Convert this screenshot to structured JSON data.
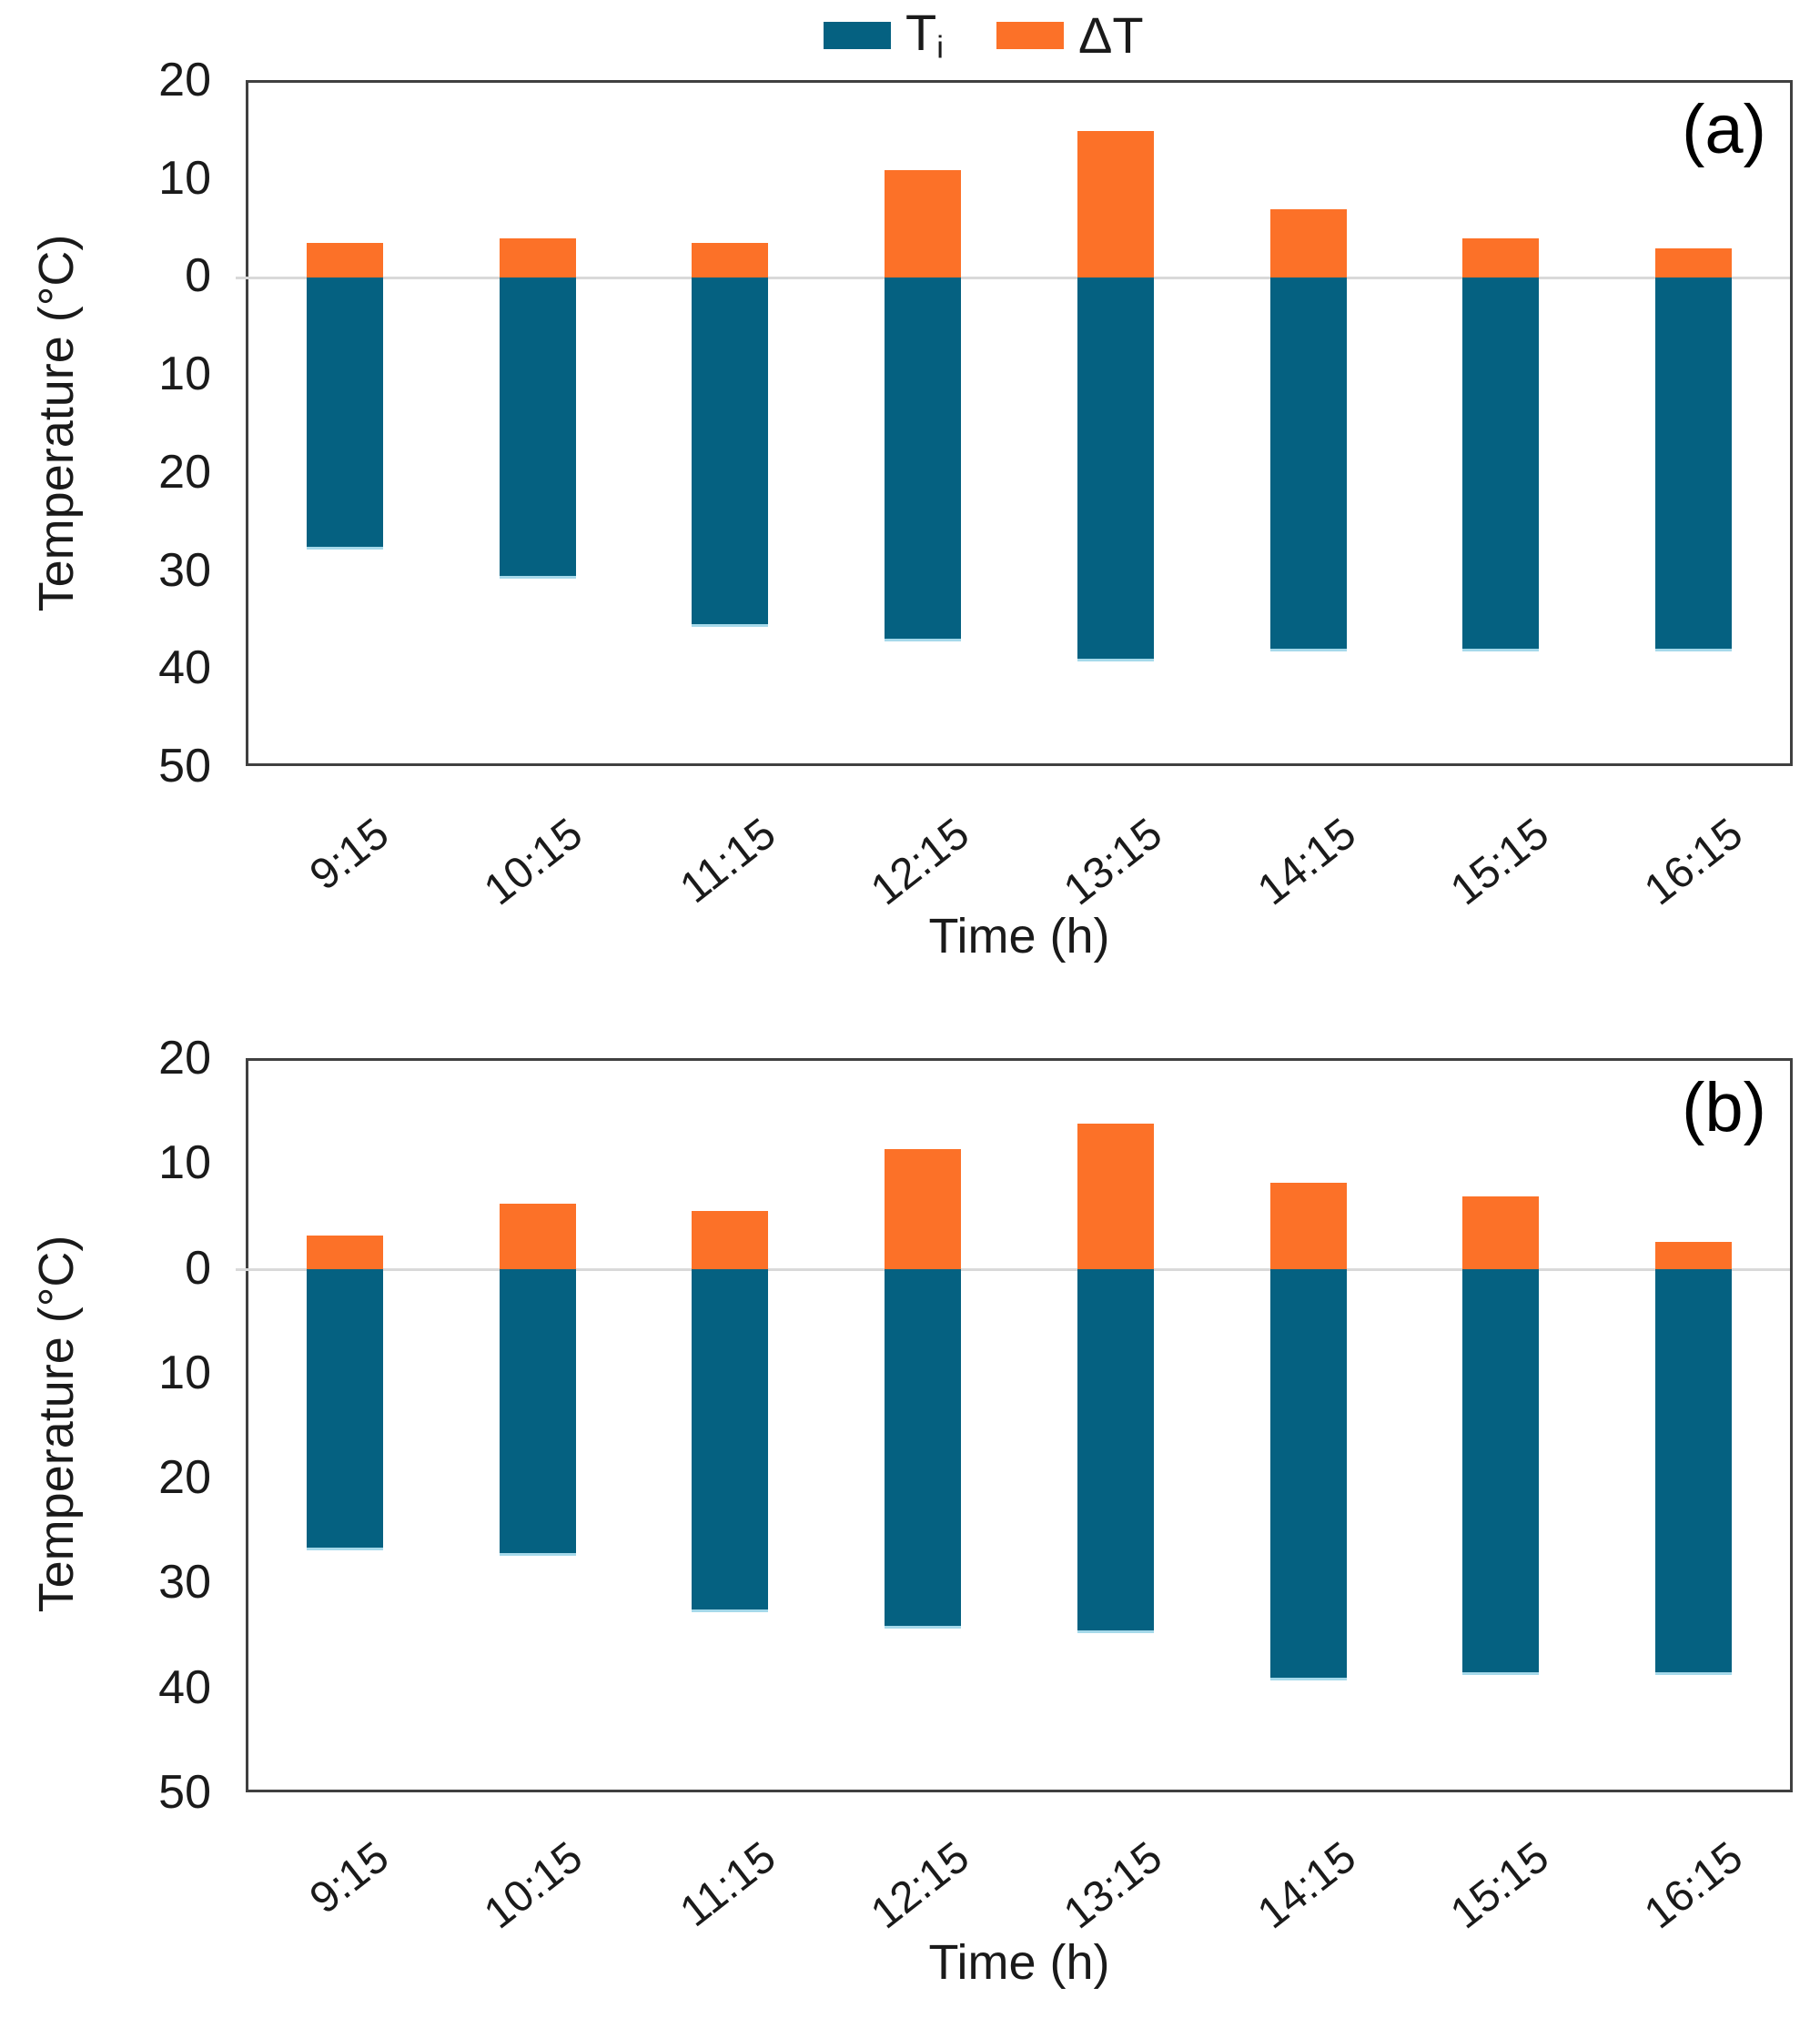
{
  "legend": {
    "items": [
      {
        "label": "T",
        "sub": "i",
        "color": "#056181"
      },
      {
        "label": "ΔT",
        "sub": "",
        "color": "#FC7128"
      }
    ]
  },
  "colors": {
    "ti_bar": "#056181",
    "dt_bar": "#FC7128",
    "frame": "#404040",
    "zero_gridline": "#d9d9d9",
    "ti_bar_bottom_edge": "#a6d9ea"
  },
  "chart_data": [
    {
      "type": "bar",
      "panel_label": "(a)",
      "xlabel": "Time (h)",
      "ylabel": "Temperature (°C)",
      "categories": [
        "9:15",
        "10:15",
        "11:15",
        "12:15",
        "13:15",
        "14:15",
        "15:15",
        "16:15"
      ],
      "axis": {
        "ymax": 20,
        "ymin": -50,
        "note": "negative side labeled with absolute values; Ti plotted downward from 0, ΔT upward"
      },
      "yticks": [
        {
          "label": "20",
          "value": 20
        },
        {
          "label": "10",
          "value": 10
        },
        {
          "label": "0",
          "value": 0
        },
        {
          "label": "10",
          "value": -10
        },
        {
          "label": "20",
          "value": -20
        },
        {
          "label": "30",
          "value": -30
        },
        {
          "label": "40",
          "value": -40
        },
        {
          "label": "50",
          "value": -50
        }
      ],
      "zero_gridline": true,
      "legend_position": "top-center",
      "series": [
        {
          "name": "Ti",
          "direction": "down",
          "color": "#056181",
          "values": [
            28,
            31,
            36,
            37.5,
            39.5,
            38.5,
            38.5,
            38.5
          ]
        },
        {
          "name": "ΔT",
          "direction": "up",
          "color": "#FC7128",
          "values": [
            3.5,
            4,
            3.5,
            11,
            15,
            7,
            4,
            3
          ]
        }
      ]
    },
    {
      "type": "bar",
      "panel_label": "(b)",
      "xlabel": "Time (h)",
      "ylabel": "Temperature (°C)",
      "categories": [
        "9:15",
        "10:15",
        "11:15",
        "12:15",
        "13:15",
        "14:15",
        "15:15",
        "16:15"
      ],
      "axis": {
        "ymax": 20,
        "ymin": -50,
        "note": "negative side labeled with absolute values; Ti plotted downward from 0, ΔT upward"
      },
      "yticks": [
        {
          "label": "20",
          "value": 20
        },
        {
          "label": "10",
          "value": 10
        },
        {
          "label": "0",
          "value": 0
        },
        {
          "label": "10",
          "value": -10
        },
        {
          "label": "20",
          "value": -20
        },
        {
          "label": "30",
          "value": -30
        },
        {
          "label": "40",
          "value": -40
        },
        {
          "label": "50",
          "value": -50
        }
      ],
      "zero_gridline": true,
      "legend_position": "shared-with-panel-a",
      "series": [
        {
          "name": "Ti",
          "direction": "down",
          "color": "#056181",
          "values": [
            27,
            27.5,
            33,
            34.5,
            35,
            39.5,
            39,
            39
          ]
        },
        {
          "name": "ΔT",
          "direction": "up",
          "color": "#FC7128",
          "values": [
            3.2,
            6.3,
            5.6,
            11.5,
            14,
            8.3,
            7,
            2.6
          ]
        }
      ]
    }
  ]
}
